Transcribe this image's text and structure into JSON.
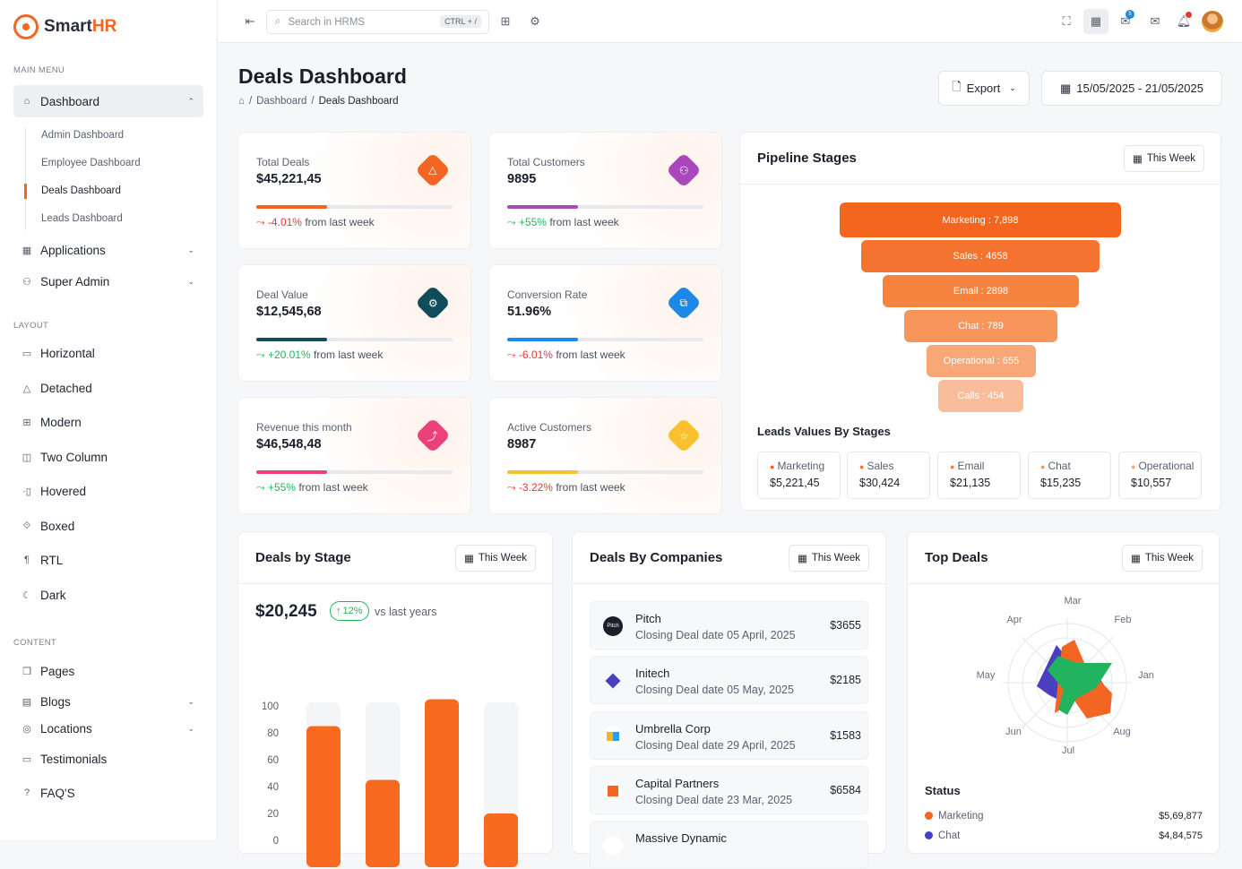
{
  "app": {
    "name_prefix": "Smart",
    "name_suffix": "HR"
  },
  "sidebar": {
    "main_menu": "MAIN MENU",
    "dashboard": "Dashboard",
    "sub": [
      "Admin Dashboard",
      "Employee Dashboard",
      "Deals Dashboard",
      "Leads Dashboard"
    ],
    "applications": "Applications",
    "super_admin": "Super Admin",
    "layout": "LAYOUT",
    "layout_items": [
      "Horizontal",
      "Detached",
      "Modern",
      "Two Column",
      "Hovered",
      "Boxed",
      "RTL",
      "Dark"
    ],
    "content": "CONTENT",
    "content_items": [
      "Pages",
      "Blogs",
      "Locations",
      "Testimonials",
      "FAQ'S"
    ]
  },
  "topbar": {
    "search_placeholder": "Search in HRMS",
    "shortcut": "CTRL + /",
    "notification_count": "5"
  },
  "page": {
    "title": "Deals Dashboard",
    "breadcrumb": [
      "Dashboard",
      "Deals Dashboard"
    ],
    "export": "Export",
    "date_range": "15/05/2025 - 21/05/2025"
  },
  "stats": [
    {
      "label": "Total Deals",
      "value": "$45,221,45",
      "change": "-4.01%",
      "suffix": "from last week",
      "progress": 0.36,
      "color": "#f26522",
      "trend": "down"
    },
    {
      "label": "Total Customers",
      "value": "9895",
      "change": "+55%",
      "suffix": "from last week",
      "progress": 0.36,
      "color": "#ab47bc",
      "trend": "up"
    },
    {
      "label": "Deal Value",
      "value": "$12,545,68",
      "change": "+20.01%",
      "suffix": "from last week",
      "progress": 0.36,
      "color": "#0f4c5c",
      "trend": "up"
    },
    {
      "label": "Conversion Rate",
      "value": "51.96%",
      "change": "-6.01%",
      "suffix": "from last week",
      "progress": 0.36,
      "color": "#1e88e5",
      "trend": "down"
    },
    {
      "label": "Revenue this month",
      "value": "$46,548,48",
      "change": "+55%",
      "suffix": "from last week",
      "progress": 0.36,
      "color": "#ec407a",
      "trend": "up"
    },
    {
      "label": "Active Customers",
      "value": "8987",
      "change": "-3.22%",
      "suffix": "from last week",
      "progress": 0.36,
      "color": "#fbc02d",
      "trend": "down"
    }
  ],
  "pipeline": {
    "title": "Pipeline Stages",
    "filter": "This Week",
    "stages": [
      "Marketing : 7,898",
      "Sales : 4658",
      "Email : 2898",
      "Chat : 789",
      "Operational : 655",
      "Calls : 454"
    ],
    "leads_title": "Leads Values By Stages",
    "leads": [
      {
        "name": "Marketing",
        "value": "$5,221,45"
      },
      {
        "name": "Sales",
        "value": "$30,424"
      },
      {
        "name": "Email",
        "value": "$21,135"
      },
      {
        "name": "Chat",
        "value": "$15,235"
      },
      {
        "name": "Operational",
        "value": "$10,557"
      }
    ]
  },
  "deals_by_stage": {
    "title": "Deals by Stage",
    "filter": "This Week",
    "total": "$20,245",
    "pct": "12%",
    "vs": "vs last years",
    "y_ticks": [
      "100",
      "80",
      "60",
      "40",
      "20",
      "0"
    ]
  },
  "chart_data": {
    "type": "bar",
    "title": "Deals by Stage",
    "ylim": [
      0,
      100
    ],
    "values": [
      85,
      45,
      105,
      20
    ],
    "track_max": 100
  },
  "companies": {
    "title": "Deals By Companies",
    "filter": "This Week",
    "items": [
      {
        "name": "Pitch",
        "date": "Closing Deal date 05 April, 2025",
        "amount": "$3655",
        "logo": "Pitch"
      },
      {
        "name": "Initech",
        "date": "Closing Deal date 05 May, 2025",
        "amount": "$2185",
        "logo": ""
      },
      {
        "name": "Umbrella Corp",
        "date": "Closing Deal date 29 April, 2025",
        "amount": "$1583",
        "logo": ""
      },
      {
        "name": "Capital Partners",
        "date": "Closing Deal date 23 Mar, 2025",
        "amount": "$6584",
        "logo": ""
      },
      {
        "name": "Massive Dynamic",
        "date": "",
        "amount": "",
        "logo": ""
      }
    ]
  },
  "top_deals": {
    "title": "Top Deals",
    "filter": "This Week",
    "months": [
      "Mar",
      "Feb",
      "Jan",
      "Aug",
      "Jul",
      "Jun",
      "May",
      "Apr"
    ],
    "status_title": "Status",
    "status": [
      {
        "name": "Marketing",
        "value": "$5,69,877",
        "color": "#f26522"
      },
      {
        "name": "Chat",
        "value": "$4,84,575",
        "color": "#4a3fbf"
      }
    ]
  }
}
